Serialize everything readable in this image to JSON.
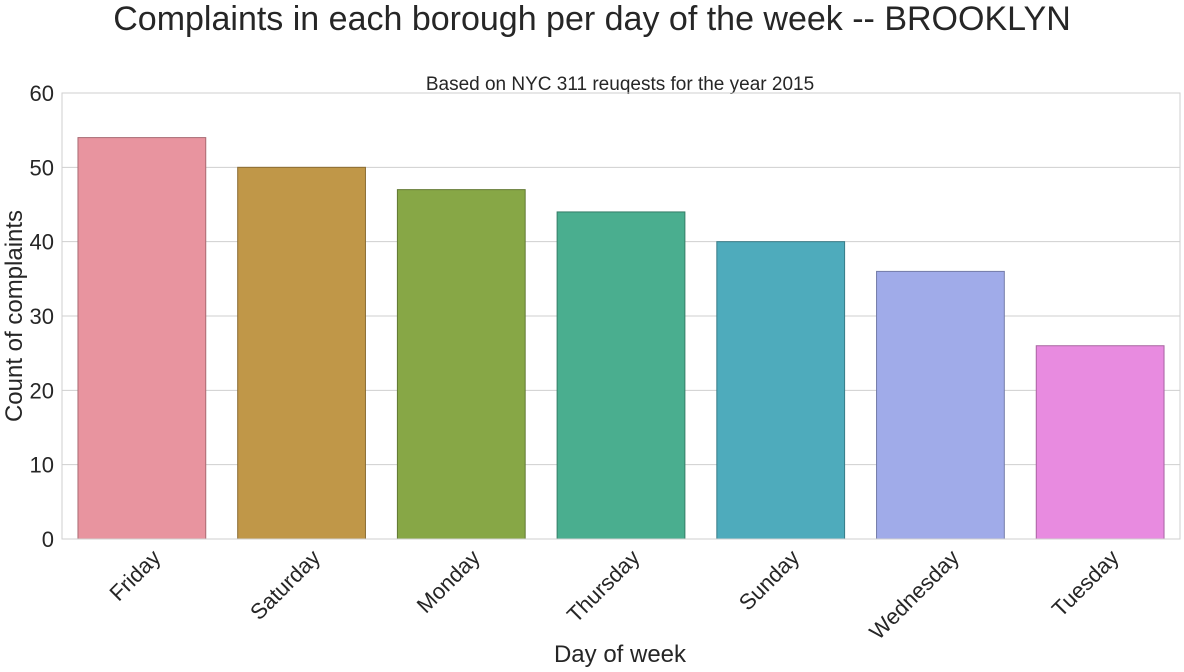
{
  "chart_data": {
    "type": "bar",
    "title": "Complaints in each borough per day of the week -- BROOKLYN",
    "subtitle": "Based on NYC 311 reuqests for the year 2015",
    "xlabel": "Day of week",
    "ylabel": "Count of complaints",
    "categories": [
      "Friday",
      "Saturday",
      "Monday",
      "Thursday",
      "Sunday",
      "Wednesday",
      "Tuesday"
    ],
    "values": [
      54,
      50,
      47,
      44,
      40,
      36,
      26
    ],
    "colors": [
      "#e8949f",
      "#c09748",
      "#87a746",
      "#4aae8f",
      "#4eabbc",
      "#a0abe9",
      "#e88be0"
    ],
    "edge_colors": [
      "#a86a72",
      "#8a6c33",
      "#617832",
      "#357d67",
      "#387b87",
      "#737ba8",
      "#a764a1"
    ],
    "ylim": [
      0,
      60
    ],
    "yticks": [
      0,
      10,
      20,
      30,
      40,
      50,
      60
    ],
    "grid": true,
    "legend": "none"
  }
}
